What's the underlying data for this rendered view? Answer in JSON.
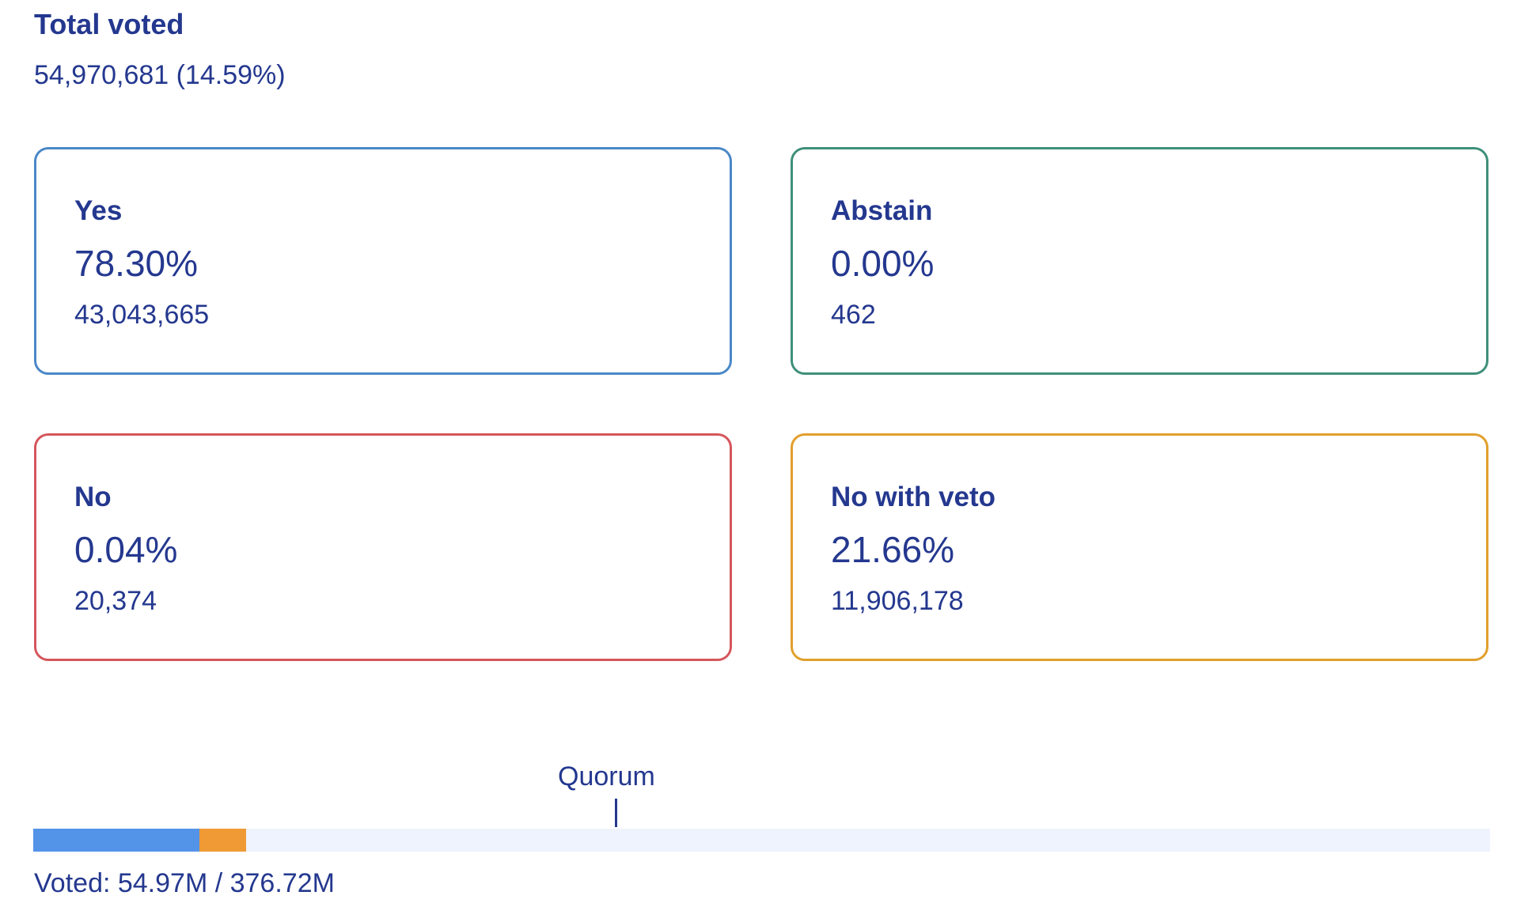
{
  "total": {
    "label": "Total voted",
    "value": "54,970,681 (14.59%)"
  },
  "options": {
    "yes": {
      "label": "Yes",
      "percent": "78.30%",
      "count": "43,043,665",
      "color": "#4a88c7"
    },
    "abstain": {
      "label": "Abstain",
      "percent": "0.00%",
      "count": "462",
      "color": "#3f8f7a"
    },
    "no": {
      "label": "No",
      "percent": "0.04%",
      "count": "20,374",
      "color": "#d5565c"
    },
    "no_with_veto": {
      "label": "No with veto",
      "percent": "21.66%",
      "count": "11,906,178",
      "color": "#e19f2c"
    }
  },
  "progress": {
    "quorum_label": "Quorum",
    "voted_text": "Voted: 54.97M / 376.72M",
    "track_color": "#eef3fd",
    "segments": [
      {
        "name": "yes",
        "fraction": 0.1142,
        "color": "#5393e8"
      },
      {
        "name": "no",
        "fraction": 0.0001,
        "color": "#d5565c"
      },
      {
        "name": "no_with_veto",
        "fraction": 0.0316,
        "color": "#ef9a35"
      }
    ],
    "quorum_fraction": 0.4
  }
}
